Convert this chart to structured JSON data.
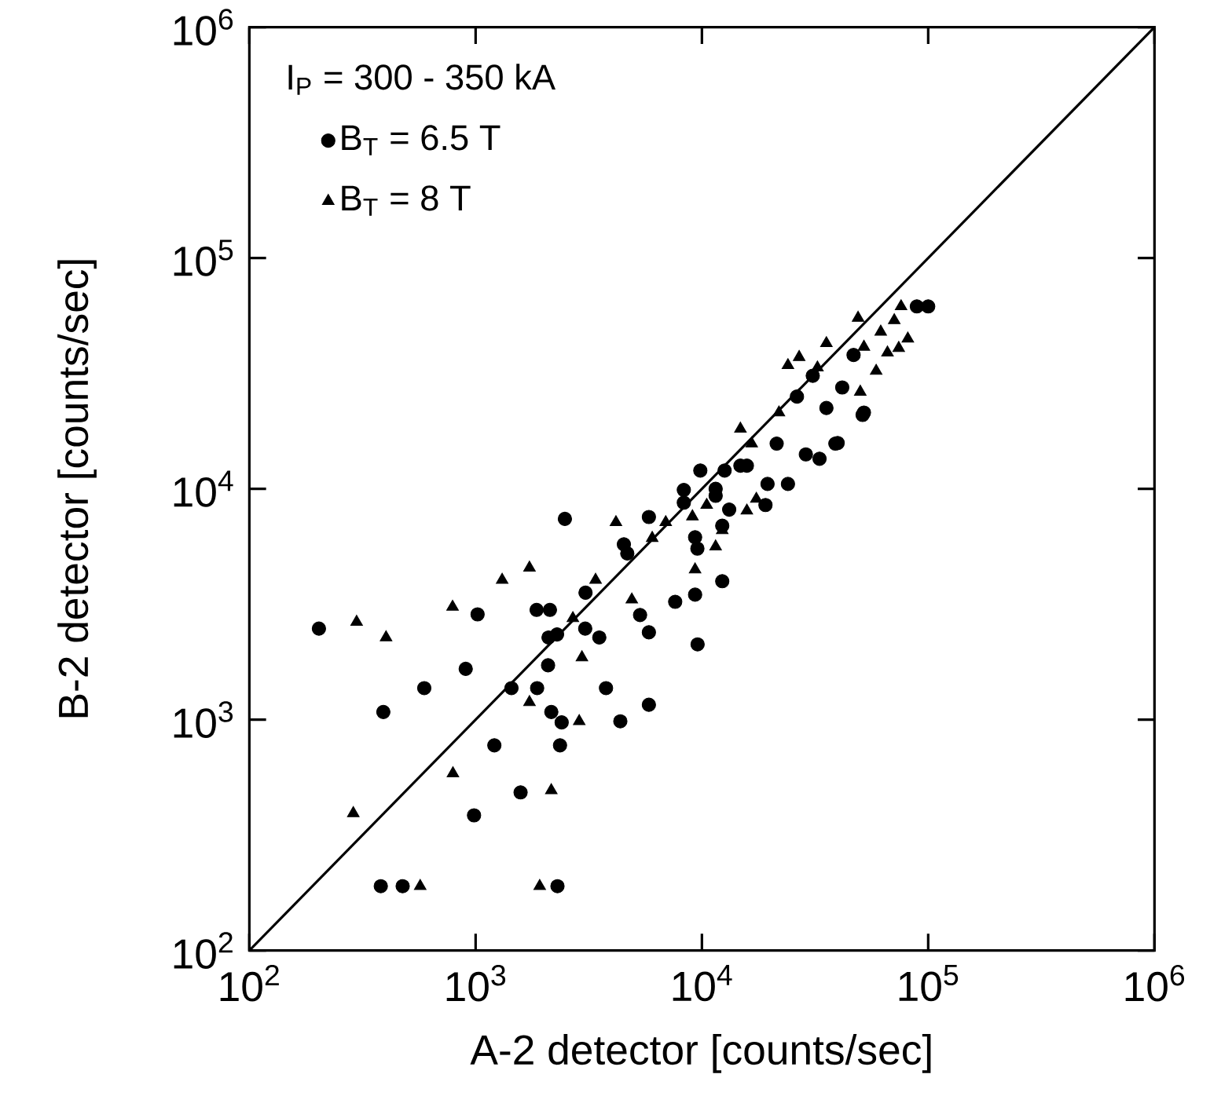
{
  "chart_data": {
    "type": "scatter",
    "xlabel": "A-2 detector  [counts/sec]",
    "ylabel": "B-2 detector  [counts/sec]",
    "legend_title": "I$_{P}$ = 300 - 350 kA",
    "log": "xy",
    "legend": "top left",
    "grid": false,
    "xlim": [
      100,
      1000000
    ],
    "ylim": [
      100,
      1000000
    ],
    "xticks": [
      {
        "value": 100,
        "label": "10$^{2}$"
      },
      {
        "value": 1000,
        "label": "10$^{3}$"
      },
      {
        "value": 10000,
        "label": "10$^{4}$"
      },
      {
        "value": 100000,
        "label": "10$^{5}$"
      },
      {
        "value": 1000000,
        "label": "10$^{6}$"
      }
    ],
    "yticks": [
      {
        "value": 100,
        "label": "10$^{2}$"
      },
      {
        "value": 1000,
        "label": "10$^{3}$"
      },
      {
        "value": 10000,
        "label": "10$^{4}$"
      },
      {
        "value": 100000,
        "label": "10$^{5}$"
      },
      {
        "value": 1000000,
        "label": "10$^{6}$"
      }
    ],
    "series": [
      {
        "name": "B$_{T}$ = 6.5 T",
        "marker": "circle",
        "color": "#000000",
        "x": [
          203,
          391,
          593,
          904,
          1020,
          1210,
          1440,
          984,
          1580,
          1870,
          2160,
          2400,
          2360,
          381,
          476,
          2300,
          1860,
          2130,
          2100,
          2290,
          2090,
          3050,
          3520,
          3770,
          2480,
          3060,
          4360,
          5830,
          9570,
          5830,
          5330,
          7620,
          9330,
          12300,
          4680,
          4520,
          5830,
          8320,
          8320,
          9840,
          11500,
          11500,
          12600,
          13200,
          9550,
          9330,
          12300,
          14800,
          15800,
          19100,
          19500,
          24000,
          21400,
          28800,
          33100,
          38900,
          52000,
          30900,
          26300,
          35500,
          41700,
          46800,
          89100,
          100000,
          51300,
          39800
        ],
        "values": [
          2480,
          1080,
          1370,
          1660,
          2860,
          774,
          1370,
          385,
          484,
          1370,
          1080,
          973,
          774,
          190,
          190,
          190,
          2990,
          2990,
          2270,
          2340,
          1720,
          2480,
          2270,
          1370,
          7410,
          3550,
          984,
          1160,
          2120,
          2390,
          2840,
          3240,
          3480,
          3980,
          5250,
          5750,
          7550,
          9890,
          8710,
          12000,
          10000,
          9330,
          12000,
          8130,
          5510,
          6170,
          6920,
          12600,
          12600,
          8510,
          10500,
          10500,
          15700,
          14100,
          13500,
          15700,
          21400,
          30900,
          25100,
          22400,
          27500,
          38000,
          61700,
          61700,
          20900,
          15800
        ]
      },
      {
        "name": "B$_{T}$ = 8 T",
        "marker": "triangle",
        "color": "#000000",
        "x": [
          298,
          402,
          791,
          1310,
          1730,
          1730,
          2870,
          2950,
          794,
          2160,
          288,
          569,
          1920,
          2690,
          3390,
          4170,
          4900,
          6030,
          6920,
          9080,
          11500,
          9330,
          10500,
          12300,
          14800,
          16600,
          17400,
          15800,
          21900,
          24000,
          26900,
          32400,
          35500,
          52000,
          58900,
          49000,
          70800,
          61700,
          81300,
          74100,
          66100,
          50100,
          75900
        ],
        "values": [
          2650,
          2270,
          3080,
          4030,
          4550,
          1190,
          984,
          1860,
          585,
          494,
          393,
          190,
          190,
          2750,
          4030,
          7160,
          3310,
          6120,
          7160,
          7590,
          5620,
          4470,
          8510,
          6610,
          18200,
          15700,
          9040,
          8040,
          21400,
          34300,
          37200,
          33500,
          42700,
          41200,
          32400,
          55000,
          53700,
          47900,
          44700,
          40700,
          38900,
          26300,
          61700
        ]
      },
      {
        "type": "line",
        "line_style": "solid",
        "marker": "none",
        "color": "#000000",
        "x": [
          100,
          1000000
        ],
        "values": [
          100,
          1000000
        ]
      }
    ]
  }
}
